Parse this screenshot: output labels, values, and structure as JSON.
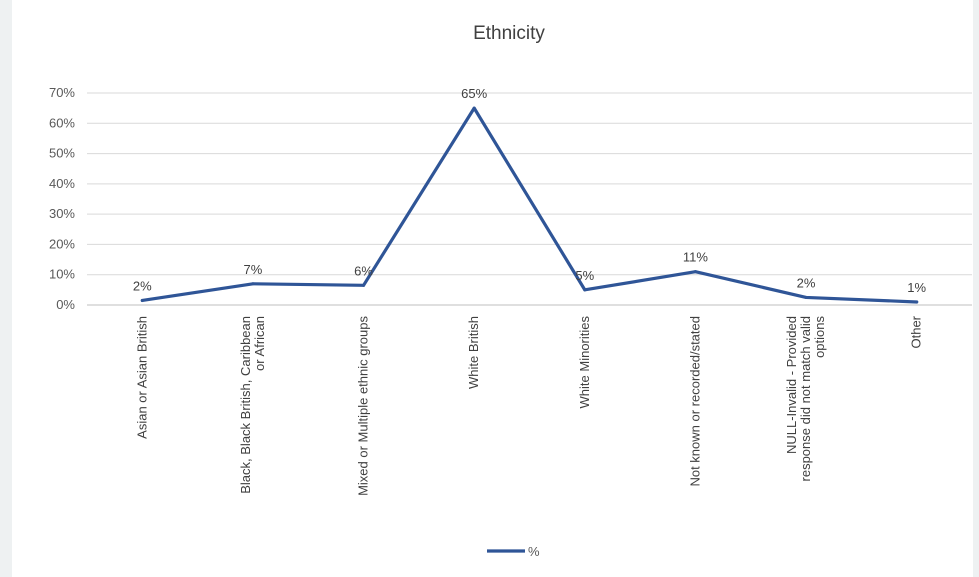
{
  "chart_data": {
    "type": "line",
    "title": "Ethnicity",
    "xlabel": "",
    "ylabel": "",
    "ylim": [
      0,
      70
    ],
    "y_ticks": [
      "0%",
      "10%",
      "20%",
      "30%",
      "40%",
      "50%",
      "60%",
      "70%"
    ],
    "grid": true,
    "legend_position": "bottom",
    "categories": [
      [
        "Asian or Asian British"
      ],
      [
        "Black, Black British, Caribbean",
        "or African"
      ],
      [
        "Mixed or Multiple ethnic groups"
      ],
      [
        "White British"
      ],
      [
        "White Minorities"
      ],
      [
        "Not known or recorded/stated"
      ],
      [
        "NULL-Invalid - Provided",
        "response did not match valid",
        "options"
      ],
      [
        "Other"
      ]
    ],
    "series": [
      {
        "name": "%",
        "color": "#2f5597",
        "values": [
          1.5,
          7,
          6.5,
          65,
          5,
          11,
          2.5,
          1
        ],
        "data_labels": [
          "2%",
          "7%",
          "6%",
          "65%",
          "5%",
          "11%",
          "2%",
          "1%"
        ]
      }
    ]
  }
}
